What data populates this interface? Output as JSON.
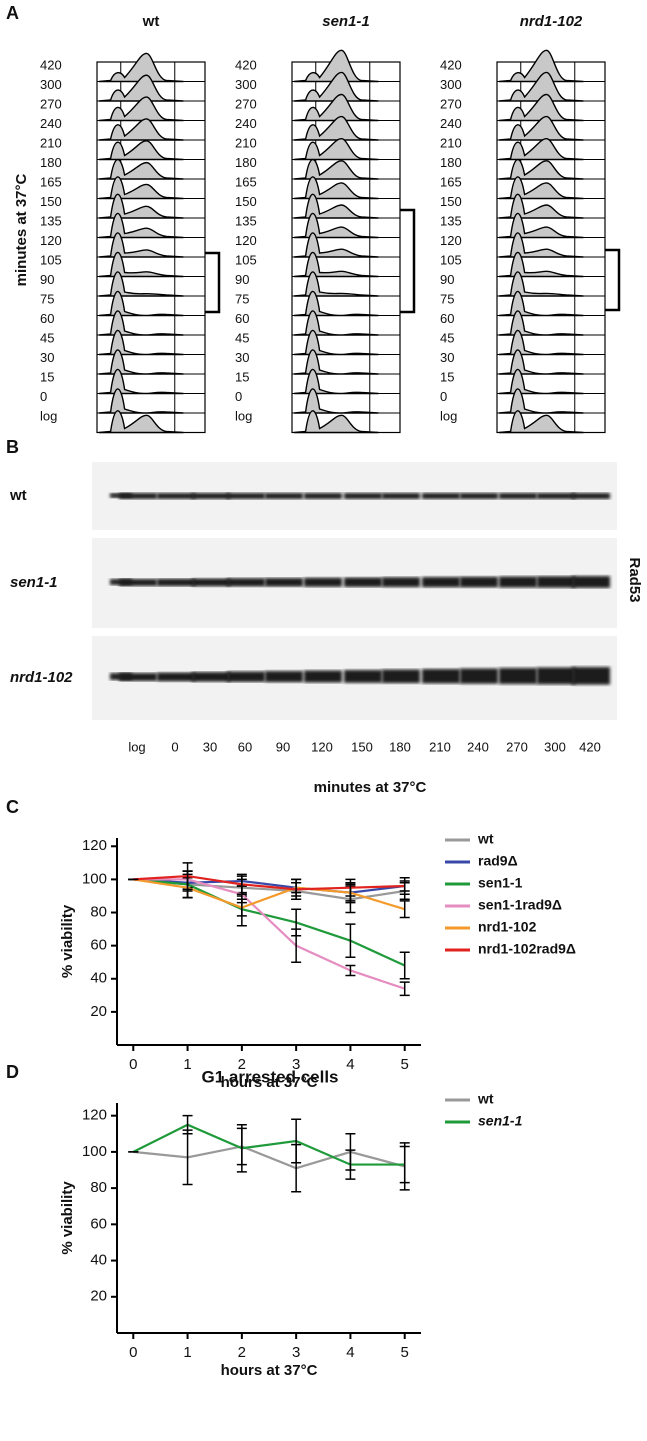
{
  "panel_a": {
    "label": "A",
    "y_label": "minutes at 37°C",
    "columns": [
      "wt",
      "sen1-1",
      "nrd1-102"
    ],
    "row_labels": [
      "420",
      "300",
      "270",
      "240",
      "210",
      "180",
      "165",
      "150",
      "135",
      "120",
      "105",
      "90",
      "75",
      "60",
      "45",
      "30",
      "15",
      "0",
      "log"
    ]
  },
  "panel_b": {
    "label": "B",
    "rows": [
      "wt",
      "sen1-1",
      "nrd1-102"
    ],
    "protein": "Rad53",
    "marker": "*",
    "lanes": [
      "log",
      "0",
      "30",
      "60",
      "90",
      "120",
      "150",
      "180",
      "210",
      "240",
      "270",
      "300",
      "420"
    ],
    "x_label": "minutes at 37°C"
  },
  "chart_data": [
    {
      "type": "line",
      "panel": "C",
      "x_label": "hours at 37°C",
      "y_label": "% viability",
      "x": [
        0,
        1,
        2,
        3,
        4,
        5
      ],
      "xlim": [
        -0.3,
        5.3
      ],
      "xticks": [
        0,
        1,
        2,
        3,
        4,
        5
      ],
      "ylim": [
        0,
        125
      ],
      "yticks": [
        20,
        40,
        60,
        80,
        100,
        120
      ],
      "series": [
        {
          "name": "wt",
          "color": "#999999",
          "values": [
            100,
            97,
            95,
            93,
            88,
            93
          ],
          "errors": [
            0,
            8,
            5,
            5,
            8,
            5
          ]
        },
        {
          "name": "rad9Δ",
          "color": "#3848a8",
          "values": [
            100,
            98,
            99,
            95,
            92,
            96
          ],
          "errors": [
            0,
            5,
            3,
            3,
            5,
            3
          ]
        },
        {
          "name": "sen1-1",
          "color": "#1f9a3a",
          "values": [
            100,
            97,
            82,
            74,
            63,
            48
          ],
          "errors": [
            0,
            8,
            10,
            8,
            10,
            8
          ]
        },
        {
          "name": "sen1-1rad9Δ",
          "color": "#e58cc0",
          "values": [
            100,
            100,
            91,
            60,
            45,
            34
          ],
          "errors": [
            0,
            5,
            5,
            10,
            3,
            4
          ]
        },
        {
          "name": "nrd1-102",
          "color": "#f39a2b",
          "values": [
            100,
            95,
            83,
            95,
            92,
            82
          ],
          "errors": [
            0,
            6,
            5,
            5,
            6,
            5
          ]
        },
        {
          "name": "nrd1-102rad9Δ",
          "color": "#e0231e",
          "values": [
            100,
            102,
            97,
            94,
            95,
            96
          ],
          "errors": [
            0,
            8,
            6,
            6,
            5,
            5
          ]
        }
      ]
    },
    {
      "type": "line",
      "panel": "D",
      "title": "G1 arrested cells",
      "x_label": "hours at 37°C",
      "y_label": "% viability",
      "x": [
        0,
        1,
        2,
        3,
        4,
        5
      ],
      "xlim": [
        -0.3,
        5.3
      ],
      "xticks": [
        0,
        1,
        2,
        3,
        4,
        5
      ],
      "ylim": [
        0,
        127
      ],
      "yticks": [
        20,
        40,
        60,
        80,
        100,
        120
      ],
      "series": [
        {
          "name": "wt",
          "color": "#999999",
          "values": [
            100,
            97,
            103,
            91,
            100,
            92
          ],
          "errors": [
            0,
            15,
            10,
            13,
            10,
            13
          ]
        },
        {
          "name": "sen1-1",
          "color": "#1f9a3a",
          "values": [
            100,
            115,
            102,
            106,
            93,
            93
          ],
          "errors": [
            0,
            5,
            13,
            12,
            8,
            10
          ]
        }
      ]
    }
  ]
}
